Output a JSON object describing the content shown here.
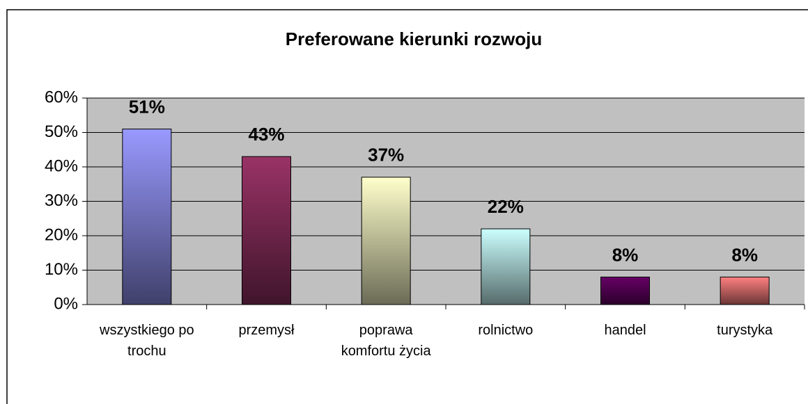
{
  "chart_data": {
    "type": "bar",
    "title": "Preferowane kierunki rozwoju",
    "categories": [
      "wszystkiego po trochu",
      "przemysł",
      "poprawa komfortu życia",
      "rolnictwo",
      "handel",
      "turystyka"
    ],
    "values": [
      51,
      43,
      37,
      22,
      8,
      8
    ],
    "value_labels": [
      "51%",
      "43%",
      "37%",
      "22%",
      "8%",
      "8%"
    ],
    "colors": [
      "#9999ff",
      "#993366",
      "#ffffcc",
      "#ccffff",
      "#660066",
      "#ff8080"
    ],
    "ylim": [
      0,
      60
    ],
    "yticks": [
      {
        "value": 0,
        "label": "0%"
      },
      {
        "value": 10,
        "label": "10%"
      },
      {
        "value": 20,
        "label": "20%"
      },
      {
        "value": 30,
        "label": "30%"
      },
      {
        "value": 40,
        "label": "40%"
      },
      {
        "value": 50,
        "label": "50%"
      },
      {
        "value": 60,
        "label": "60%"
      }
    ],
    "grid": true
  }
}
